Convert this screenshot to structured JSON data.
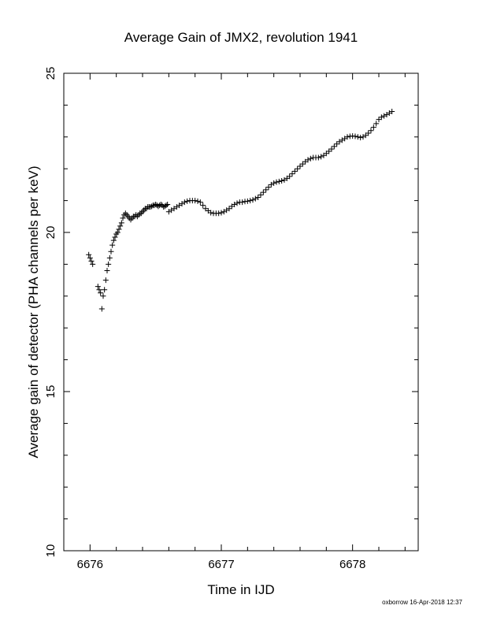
{
  "chart_data": {
    "type": "scatter",
    "marker": "plus",
    "color": "#000000",
    "title": "Average Gain of JMX2, revolution 1941",
    "xlabel": "Time in IJD",
    "ylabel": "Average gain of detector (PHA channels per keV)",
    "xlim": [
      6675.8,
      6678.5
    ],
    "ylim": [
      10,
      25
    ],
    "xticks": [
      6676,
      6677,
      6678
    ],
    "yticks": [
      10,
      15,
      20,
      25
    ],
    "grid": false,
    "series": [
      {
        "points": [
          [
            6675.99,
            19.3
          ],
          [
            6676.0,
            19.2
          ],
          [
            6676.01,
            19.1
          ],
          [
            6676.02,
            19.0
          ],
          [
            6676.06,
            18.3
          ],
          [
            6676.07,
            18.2
          ],
          [
            6676.08,
            18.1
          ],
          [
            6676.09,
            17.6
          ],
          [
            6676.1,
            18.0
          ],
          [
            6676.11,
            18.2
          ],
          [
            6676.12,
            18.5
          ],
          [
            6676.13,
            18.8
          ],
          [
            6676.14,
            19.0
          ],
          [
            6676.15,
            19.2
          ],
          [
            6676.16,
            19.4
          ],
          [
            6676.17,
            19.6
          ],
          [
            6676.18,
            19.75
          ],
          [
            6676.19,
            19.85
          ],
          [
            6676.2,
            19.95
          ],
          [
            6676.21,
            20.0
          ],
          [
            6676.22,
            20.1
          ],
          [
            6676.23,
            20.2
          ],
          [
            6676.24,
            20.3
          ],
          [
            6676.25,
            20.45
          ],
          [
            6676.26,
            20.55
          ],
          [
            6676.27,
            20.6
          ],
          [
            6676.28,
            20.55
          ],
          [
            6676.29,
            20.5
          ],
          [
            6676.3,
            20.45
          ],
          [
            6676.31,
            20.4
          ],
          [
            6676.32,
            20.45
          ],
          [
            6676.33,
            20.5
          ],
          [
            6676.34,
            20.5
          ],
          [
            6676.35,
            20.55
          ],
          [
            6676.36,
            20.5
          ],
          [
            6676.37,
            20.55
          ],
          [
            6676.38,
            20.6
          ],
          [
            6676.39,
            20.6
          ],
          [
            6676.4,
            20.65
          ],
          [
            6676.41,
            20.7
          ],
          [
            6676.42,
            20.75
          ],
          [
            6676.43,
            20.75
          ],
          [
            6676.44,
            20.8
          ],
          [
            6676.45,
            20.8
          ],
          [
            6676.46,
            20.8
          ],
          [
            6676.47,
            20.82
          ],
          [
            6676.48,
            20.85
          ],
          [
            6676.49,
            20.85
          ],
          [
            6676.5,
            20.88
          ],
          [
            6676.51,
            20.85
          ],
          [
            6676.52,
            20.82
          ],
          [
            6676.53,
            20.85
          ],
          [
            6676.54,
            20.88
          ],
          [
            6676.55,
            20.85
          ],
          [
            6676.56,
            20.8
          ],
          [
            6676.57,
            20.82
          ],
          [
            6676.58,
            20.85
          ],
          [
            6676.59,
            20.88
          ],
          [
            6676.6,
            20.65
          ],
          [
            6676.62,
            20.7
          ],
          [
            6676.64,
            20.75
          ],
          [
            6676.66,
            20.8
          ],
          [
            6676.68,
            20.85
          ],
          [
            6676.7,
            20.9
          ],
          [
            6676.72,
            20.95
          ],
          [
            6676.74,
            20.98
          ],
          [
            6676.76,
            21.0
          ],
          [
            6676.78,
            21.0
          ],
          [
            6676.8,
            21.0
          ],
          [
            6676.82,
            20.98
          ],
          [
            6676.84,
            20.95
          ],
          [
            6676.86,
            20.85
          ],
          [
            6676.88,
            20.75
          ],
          [
            6676.9,
            20.68
          ],
          [
            6676.92,
            20.62
          ],
          [
            6676.94,
            20.6
          ],
          [
            6676.96,
            20.6
          ],
          [
            6676.98,
            20.6
          ],
          [
            6677.0,
            20.62
          ],
          [
            6677.02,
            20.65
          ],
          [
            6677.04,
            20.7
          ],
          [
            6677.06,
            20.75
          ],
          [
            6677.08,
            20.82
          ],
          [
            6677.1,
            20.88
          ],
          [
            6677.12,
            20.92
          ],
          [
            6677.14,
            20.95
          ],
          [
            6677.16,
            20.95
          ],
          [
            6677.18,
            20.97
          ],
          [
            6677.2,
            20.98
          ],
          [
            6677.22,
            21.0
          ],
          [
            6677.24,
            21.02
          ],
          [
            6677.26,
            21.06
          ],
          [
            6677.28,
            21.1
          ],
          [
            6677.3,
            21.18
          ],
          [
            6677.32,
            21.26
          ],
          [
            6677.34,
            21.34
          ],
          [
            6677.36,
            21.42
          ],
          [
            6677.38,
            21.5
          ],
          [
            6677.4,
            21.55
          ],
          [
            6677.42,
            21.58
          ],
          [
            6677.44,
            21.6
          ],
          [
            6677.46,
            21.62
          ],
          [
            6677.48,
            21.65
          ],
          [
            6677.5,
            21.7
          ],
          [
            6677.52,
            21.76
          ],
          [
            6677.54,
            21.84
          ],
          [
            6677.56,
            21.92
          ],
          [
            6677.58,
            22.0
          ],
          [
            6677.6,
            22.08
          ],
          [
            6677.62,
            22.15
          ],
          [
            6677.64,
            22.22
          ],
          [
            6677.66,
            22.28
          ],
          [
            6677.68,
            22.32
          ],
          [
            6677.7,
            22.35
          ],
          [
            6677.72,
            22.35
          ],
          [
            6677.74,
            22.35
          ],
          [
            6677.76,
            22.38
          ],
          [
            6677.78,
            22.42
          ],
          [
            6677.8,
            22.48
          ],
          [
            6677.82,
            22.55
          ],
          [
            6677.84,
            22.62
          ],
          [
            6677.86,
            22.7
          ],
          [
            6677.88,
            22.78
          ],
          [
            6677.9,
            22.85
          ],
          [
            6677.92,
            22.9
          ],
          [
            6677.94,
            22.95
          ],
          [
            6677.96,
            23.0
          ],
          [
            6677.98,
            23.02
          ],
          [
            6678.0,
            23.03
          ],
          [
            6678.02,
            23.02
          ],
          [
            6678.04,
            23.0
          ],
          [
            6678.06,
            22.98
          ],
          [
            6678.08,
            23.0
          ],
          [
            6678.1,
            23.05
          ],
          [
            6678.12,
            23.12
          ],
          [
            6678.14,
            23.2
          ],
          [
            6678.16,
            23.3
          ],
          [
            6678.18,
            23.42
          ],
          [
            6678.2,
            23.55
          ],
          [
            6678.22,
            23.62
          ],
          [
            6678.24,
            23.66
          ],
          [
            6678.26,
            23.7
          ],
          [
            6678.28,
            23.75
          ],
          [
            6678.3,
            23.8
          ]
        ]
      }
    ]
  },
  "footer": "oxborrow 16-Apr-2018 12:37"
}
